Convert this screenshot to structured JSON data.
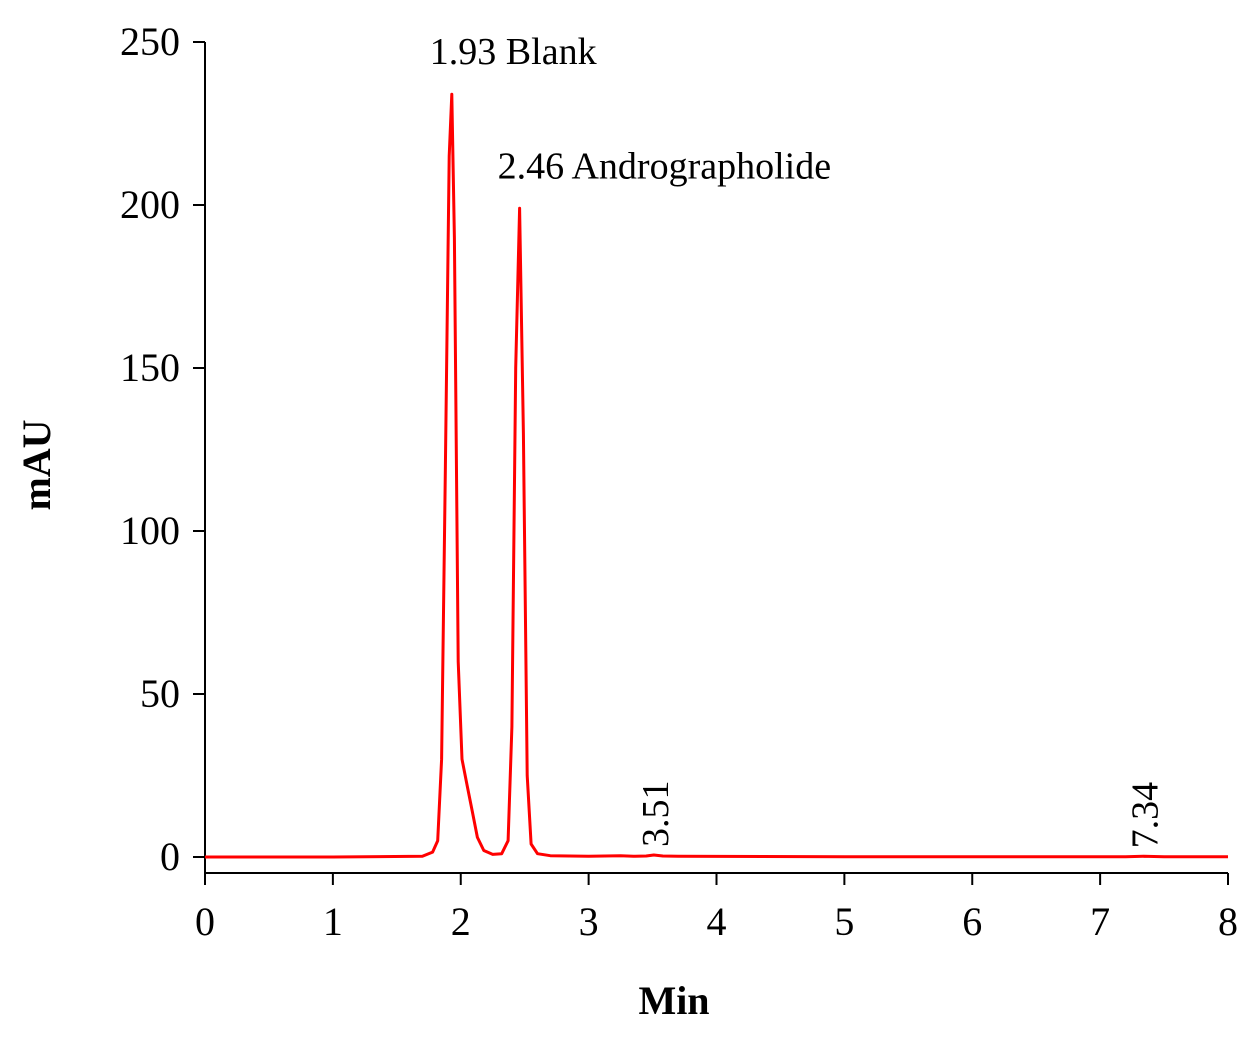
{
  "chart_data": {
    "type": "line",
    "title": "",
    "xlabel": "Min",
    "ylabel": "mAU",
    "xlim": [
      0,
      8
    ],
    "ylim": [
      0,
      250
    ],
    "x_ticks": [
      "0",
      "1",
      "2",
      "3",
      "4",
      "5",
      "6",
      "7",
      "8"
    ],
    "y_ticks": [
      "0",
      "50",
      "100",
      "150",
      "200",
      "250"
    ],
    "grid": false,
    "legend": "none",
    "line_color": "#ff0000",
    "series": [
      {
        "x": [
          0,
          1.0,
          1.7,
          1.78,
          1.82,
          1.85,
          1.88,
          1.91,
          1.93,
          1.95,
          1.98,
          2.01,
          2.05,
          2.09,
          2.13,
          2.18,
          2.25,
          2.32,
          2.37,
          2.4,
          2.43,
          2.46,
          2.49,
          2.52,
          2.55,
          2.6,
          2.7,
          3.0,
          3.25,
          3.35,
          3.45,
          3.51,
          3.58,
          3.7,
          5.0,
          7.2,
          7.34,
          7.5,
          8.0
        ],
        "y": [
          0,
          0,
          0.2,
          1.5,
          5,
          30,
          120,
          215,
          234,
          190,
          60,
          30,
          22,
          14,
          6,
          2,
          0.8,
          1,
          5,
          40,
          150,
          199,
          130,
          25,
          4,
          1,
          0.4,
          0.2,
          0.4,
          0.2,
          0.3,
          0.6,
          0.3,
          0.2,
          0.1,
          0.1,
          0.2,
          0.1,
          0.1
        ]
      }
    ],
    "annotations": [
      {
        "text": "1.93  Blank",
        "x": 1.93,
        "y": 234
      },
      {
        "text": "2.46 Andrographolide",
        "x": 2.46,
        "y": 199
      },
      {
        "text": "3.51",
        "x": 3.51,
        "y": 0.6,
        "orientation": "vertical"
      },
      {
        "text": "7.34",
        "x": 7.34,
        "y": 0.2,
        "orientation": "vertical"
      }
    ]
  }
}
